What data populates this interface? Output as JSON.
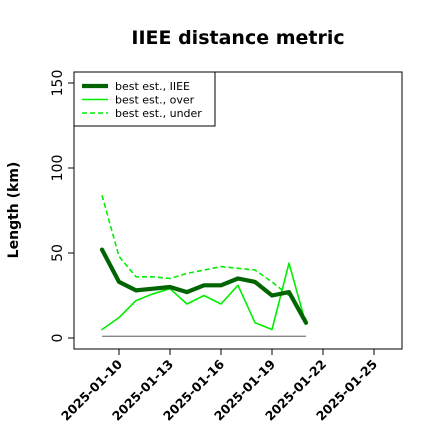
{
  "chart_data": {
    "type": "line",
    "title": "IIEE distance metric",
    "xlabel": "",
    "ylabel": "Length (km)",
    "ylim": [
      0,
      150
    ],
    "yticks": [
      0,
      50,
      100,
      150
    ],
    "xlim": [
      "2025-01-08",
      "2025-01-26"
    ],
    "xticks": [
      "2025-01-10",
      "2025-01-13",
      "2025-01-16",
      "2025-01-19",
      "2025-01-22",
      "2025-01-25"
    ],
    "x": [
      "2025-01-09",
      "2025-01-10",
      "2025-01-11",
      "2025-01-12",
      "2025-01-13",
      "2025-01-14",
      "2025-01-15",
      "2025-01-16",
      "2025-01-17",
      "2025-01-18",
      "2025-01-19",
      "2025-01-20",
      "2025-01-21"
    ],
    "series": [
      {
        "name": "best est., IIEE",
        "color": "#006400",
        "style": "solid",
        "width": "thick",
        "values": [
          52,
          33,
          28,
          29,
          30,
          27,
          31,
          31,
          35,
          33,
          25,
          27,
          9
        ]
      },
      {
        "name": "best est., over",
        "color": "#00ee00",
        "style": "solid",
        "width": "thin",
        "values": [
          5,
          12,
          22,
          26,
          29,
          20,
          25,
          20,
          31,
          9,
          5,
          44,
          8
        ]
      },
      {
        "name": "best est., under",
        "color": "#00ee00",
        "style": "dashed",
        "width": "thin",
        "values": [
          84,
          48,
          36,
          36,
          35,
          38,
          40,
          42,
          41,
          40,
          33,
          25,
          11
        ]
      }
    ],
    "reference_line": {
      "color": "#888888",
      "y": 1,
      "x_start": "2025-01-09",
      "x_end": "2025-01-21"
    },
    "grid": false,
    "legend_position": "top-left"
  }
}
